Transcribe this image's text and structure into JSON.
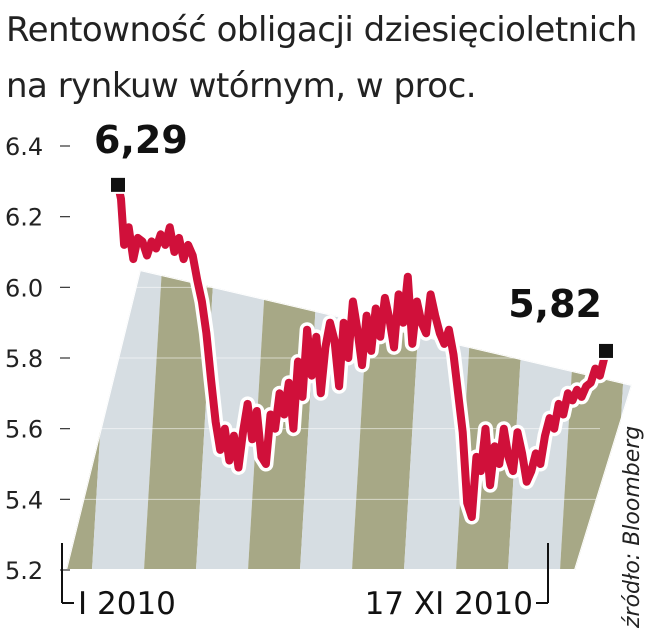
{
  "chart_data": {
    "type": "line",
    "title": "Rentowność obligacji dziesięcioletnich na rynkuw wtórnym, w proc.",
    "title_lines": [
      "Rentowność obligacji dziesięcioletnich",
      "na rynkuw wtórnym, w proc."
    ],
    "x_tick_labels": [
      "I 2010",
      "17 XI 2010"
    ],
    "x_range": [
      "2010-01-01",
      "2010-11-17"
    ],
    "y_ticks": [
      "6.4",
      "6.2",
      "6.0",
      "5.8",
      "5.6",
      "5.4",
      "5.2"
    ],
    "ylim": [
      5.2,
      6.4
    ],
    "grid": false,
    "annotations": [
      {
        "label": "6,29",
        "value": 6.29,
        "date": "2010-01-01"
      },
      {
        "label": "5,82",
        "value": 5.82,
        "date": "2010-11-17"
      }
    ],
    "source": "źródło: Bloomberg",
    "colors": {
      "line": "#d0103a",
      "line_halo": "#ffffff",
      "band_dark": "#a7a886",
      "band_light": "#d6dde2",
      "marker": "#111111"
    },
    "series": [
      {
        "x": [
          "2010-01-01",
          "2010-01-03",
          "2010-01-05",
          "2010-01-08",
          "2010-01-11",
          "2010-01-14",
          "2010-01-17",
          "2010-01-20",
          "2010-01-23",
          "2010-01-26",
          "2010-01-29",
          "2010-02-01",
          "2010-02-04",
          "2010-02-07",
          "2010-02-10",
          "2010-02-13",
          "2010-02-16",
          "2010-02-19",
          "2010-02-22",
          "2010-02-25",
          "2010-02-28",
          "2010-03-03",
          "2010-03-06",
          "2010-03-09",
          "2010-03-12",
          "2010-03-15",
          "2010-03-18",
          "2010-03-21",
          "2010-03-24",
          "2010-03-27",
          "2010-03-30",
          "2010-04-02",
          "2010-04-05",
          "2010-04-08",
          "2010-04-11",
          "2010-04-14",
          "2010-04-17",
          "2010-04-20",
          "2010-04-23",
          "2010-04-26",
          "2010-04-29",
          "2010-05-02",
          "2010-05-05",
          "2010-05-08",
          "2010-05-11",
          "2010-05-14",
          "2010-05-17",
          "2010-05-20",
          "2010-05-23",
          "2010-05-26",
          "2010-05-29",
          "2010-06-01",
          "2010-06-04",
          "2010-06-07",
          "2010-06-10",
          "2010-06-13",
          "2010-06-16",
          "2010-06-19",
          "2010-06-22",
          "2010-06-25",
          "2010-06-28",
          "2010-07-01",
          "2010-07-04",
          "2010-07-07",
          "2010-07-10",
          "2010-07-13",
          "2010-07-16",
          "2010-07-19",
          "2010-07-22",
          "2010-07-25",
          "2010-07-28",
          "2010-07-31",
          "2010-08-03",
          "2010-08-06",
          "2010-08-09",
          "2010-08-12",
          "2010-08-15",
          "2010-08-18",
          "2010-08-21",
          "2010-08-24",
          "2010-08-27",
          "2010-08-30",
          "2010-09-02",
          "2010-09-05",
          "2010-09-08",
          "2010-09-11",
          "2010-09-14",
          "2010-09-17",
          "2010-09-20",
          "2010-09-23",
          "2010-09-26",
          "2010-09-29",
          "2010-10-02",
          "2010-10-05",
          "2010-10-08",
          "2010-10-11",
          "2010-10-14",
          "2010-10-17",
          "2010-10-20",
          "2010-10-23",
          "2010-10-26",
          "2010-10-29",
          "2010-11-01",
          "2010-11-04",
          "2010-11-07",
          "2010-11-10",
          "2010-11-13",
          "2010-11-17"
        ],
        "values": [
          6.29,
          6.25,
          6.12,
          6.17,
          6.08,
          6.14,
          6.13,
          6.09,
          6.13,
          6.11,
          6.15,
          6.12,
          6.17,
          6.1,
          6.14,
          6.08,
          6.12,
          6.09,
          6.02,
          5.96,
          5.87,
          5.74,
          5.62,
          5.54,
          5.6,
          5.51,
          5.58,
          5.49,
          5.59,
          5.67,
          5.57,
          5.65,
          5.52,
          5.5,
          5.64,
          5.6,
          5.7,
          5.64,
          5.73,
          5.6,
          5.79,
          5.69,
          5.88,
          5.75,
          5.86,
          5.7,
          5.83,
          5.9,
          5.85,
          5.72,
          5.9,
          5.8,
          5.96,
          5.88,
          5.78,
          5.92,
          5.82,
          5.94,
          5.86,
          5.97,
          5.91,
          5.83,
          5.98,
          5.9,
          6.03,
          5.84,
          5.96,
          5.9,
          5.87,
          5.98,
          5.92,
          5.87,
          5.84,
          5.88,
          5.81,
          5.7,
          5.59,
          5.39,
          5.35,
          5.52,
          5.48,
          5.6,
          5.44,
          5.55,
          5.5,
          5.6,
          5.52,
          5.48,
          5.59,
          5.53,
          5.45,
          5.48,
          5.53,
          5.5,
          5.58,
          5.63,
          5.6,
          5.67,
          5.64,
          5.7,
          5.68,
          5.71,
          5.69,
          5.72,
          5.73,
          5.77,
          5.75,
          5.82
        ]
      }
    ]
  }
}
